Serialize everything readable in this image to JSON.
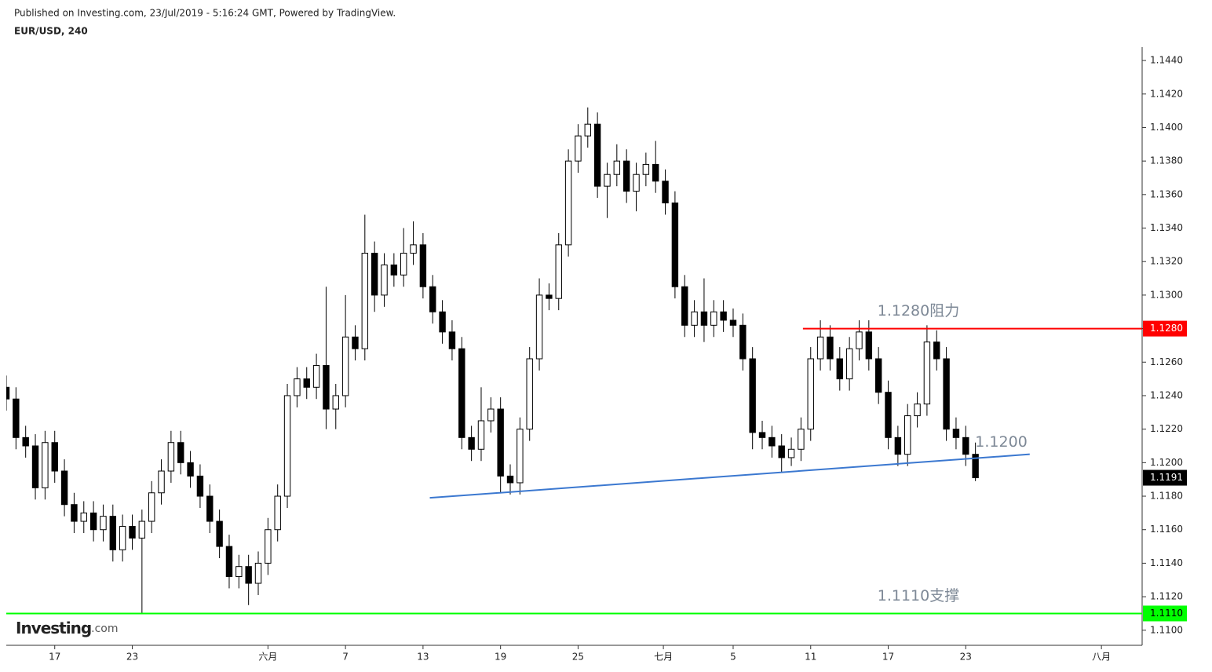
{
  "chart_data": {
    "type": "candlestick",
    "published": "Published on Investing.com, 23/Jul/2019 - 5:16:24 GMT, Powered by TradingView.",
    "title": "EUR/USD, 240",
    "logo": {
      "name": "Investing",
      "suffix": ".com"
    },
    "up_color": "#ffffff",
    "down_color": "#000000",
    "edge_color": "#000000",
    "xlim": [
      -2.5,
      56.1
    ],
    "xticks": [
      {
        "value": 0,
        "label": "17"
      },
      {
        "value": 4,
        "label": "23"
      },
      {
        "value": 11,
        "label": "六月"
      },
      {
        "value": 15,
        "label": "7"
      },
      {
        "value": 19,
        "label": "13"
      },
      {
        "value": 23,
        "label": "19"
      },
      {
        "value": 27,
        "label": "25"
      },
      {
        "value": 31.4,
        "label": "七月"
      },
      {
        "value": 35,
        "label": "5"
      },
      {
        "value": 39,
        "label": "11"
      },
      {
        "value": 43,
        "label": "17"
      },
      {
        "value": 47,
        "label": "23"
      },
      {
        "value": 54,
        "label": "八月"
      }
    ],
    "ylim": [
      1.1091,
      1.1448
    ],
    "yticks": [
      {
        "value": 1.11,
        "label": "1.1100"
      },
      {
        "value": 1.112,
        "label": "1.1120"
      },
      {
        "value": 1.114,
        "label": "1.1140"
      },
      {
        "value": 1.116,
        "label": "1.1160"
      },
      {
        "value": 1.118,
        "label": "1.1180"
      },
      {
        "value": 1.12,
        "label": "1.1200"
      },
      {
        "value": 1.122,
        "label": "1.1220"
      },
      {
        "value": 1.124,
        "label": "1.1240"
      },
      {
        "value": 1.126,
        "label": "1.1260"
      },
      {
        "value": 1.128,
        "label": "1.1280"
      },
      {
        "value": 1.13,
        "label": "1.1300"
      },
      {
        "value": 1.132,
        "label": "1.1320"
      },
      {
        "value": 1.134,
        "label": "1.1340"
      },
      {
        "value": 1.136,
        "label": "1.1360"
      },
      {
        "value": 1.138,
        "label": "1.1380"
      },
      {
        "value": 1.14,
        "label": "1.1400"
      },
      {
        "value": 1.142,
        "label": "1.1420"
      },
      {
        "value": 1.144,
        "label": "1.1440"
      }
    ],
    "x": [
      -2.5,
      -2,
      -1.5,
      -1,
      -0.5,
      0,
      0.5,
      1,
      1.5,
      2,
      2.5,
      3,
      3.5,
      4,
      4.5,
      5,
      5.5,
      6,
      6.5,
      7,
      7.5,
      8,
      8.5,
      9,
      9.5,
      10,
      10.5,
      11,
      11.5,
      12,
      12.5,
      13,
      13.5,
      14,
      14.5,
      15,
      15.5,
      16,
      16.5,
      17,
      17.5,
      18,
      18.5,
      19,
      19.5,
      20,
      20.5,
      21,
      21.5,
      22,
      22.5,
      23,
      23.5,
      24,
      24.5,
      25,
      25.5,
      26,
      26.5,
      27,
      27.5,
      28,
      28.5,
      29,
      29.5,
      30,
      30.5,
      31,
      31.5,
      32,
      32.5,
      33,
      33.5,
      34,
      34.5,
      35,
      35.5,
      36,
      36.5,
      37,
      37.5,
      38,
      38.5,
      39,
      39.5,
      40,
      40.5,
      41,
      41.5,
      42,
      42.5,
      43,
      43.5,
      44,
      44.5,
      45,
      45.5,
      46,
      46.5,
      47,
      47.5
    ],
    "open": [
      1.1245,
      1.1238,
      1.1215,
      1.121,
      1.1185,
      1.1212,
      1.1195,
      1.1175,
      1.1165,
      1.117,
      1.116,
      1.1168,
      1.1148,
      1.1162,
      1.1155,
      1.1165,
      1.1182,
      1.1195,
      1.1212,
      1.12,
      1.1192,
      1.118,
      1.1165,
      1.115,
      1.1132,
      1.1138,
      1.1128,
      1.114,
      1.116,
      1.118,
      1.124,
      1.125,
      1.1245,
      1.1258,
      1.1232,
      1.124,
      1.1275,
      1.1268,
      1.1325,
      1.13,
      1.1318,
      1.1312,
      1.1325,
      1.133,
      1.1305,
      1.129,
      1.1278,
      1.1268,
      1.1215,
      1.1208,
      1.1225,
      1.1232,
      1.1192,
      1.1188,
      1.122,
      1.1262,
      1.13,
      1.1298,
      1.133,
      1.138,
      1.1395,
      1.1402,
      1.1365,
      1.1372,
      1.138,
      1.1362,
      1.1372,
      1.1378,
      1.1368,
      1.1355,
      1.1305,
      1.1282,
      1.129,
      1.1282,
      1.129,
      1.1285,
      1.1282,
      1.1262,
      1.1218,
      1.1215,
      1.121,
      1.1203,
      1.1208,
      1.122,
      1.1262,
      1.1275,
      1.1262,
      1.125,
      1.1268,
      1.1278,
      1.1262,
      1.1242,
      1.1215,
      1.1205,
      1.1228,
      1.1235,
      1.1272,
      1.1262,
      1.122,
      1.1215,
      1.1205
    ],
    "high": [
      1.1252,
      1.1245,
      1.1222,
      1.1217,
      1.1219,
      1.1219,
      1.1202,
      1.1182,
      1.1177,
      1.1177,
      1.1175,
      1.1175,
      1.1169,
      1.1169,
      1.1172,
      1.1189,
      1.1202,
      1.1219,
      1.1219,
      1.1207,
      1.1199,
      1.1187,
      1.1172,
      1.1157,
      1.1145,
      1.1145,
      1.1147,
      1.1167,
      1.1187,
      1.1247,
      1.1257,
      1.1257,
      1.1265,
      1.1305,
      1.1247,
      1.13,
      1.1282,
      1.1348,
      1.1332,
      1.1325,
      1.1325,
      1.134,
      1.1344,
      1.1337,
      1.1312,
      1.1297,
      1.1285,
      1.1275,
      1.1222,
      1.1245,
      1.1239,
      1.1239,
      1.1199,
      1.1227,
      1.1269,
      1.131,
      1.1307,
      1.1337,
      1.1387,
      1.1402,
      1.1412,
      1.1409,
      1.1379,
      1.139,
      1.1387,
      1.1379,
      1.1385,
      1.1392,
      1.1375,
      1.1362,
      1.1312,
      1.1297,
      1.131,
      1.1297,
      1.1297,
      1.1292,
      1.1289,
      1.1269,
      1.1225,
      1.1222,
      1.1217,
      1.1215,
      1.1227,
      1.1269,
      1.1285,
      1.1282,
      1.1269,
      1.1275,
      1.1285,
      1.1285,
      1.1269,
      1.1249,
      1.1222,
      1.1235,
      1.1242,
      1.1282,
      1.1279,
      1.1269,
      1.1227,
      1.1222,
      1.1212
    ],
    "low": [
      1.1231,
      1.1208,
      1.1203,
      1.1178,
      1.1178,
      1.1188,
      1.1168,
      1.1158,
      1.1158,
      1.1153,
      1.1153,
      1.1141,
      1.1141,
      1.1148,
      1.111,
      1.1158,
      1.1175,
      1.1188,
      1.1193,
      1.1185,
      1.1173,
      1.1158,
      1.1143,
      1.1125,
      1.1125,
      1.1115,
      1.1121,
      1.1133,
      1.1153,
      1.1173,
      1.1233,
      1.1238,
      1.1238,
      1.122,
      1.122,
      1.1233,
      1.1261,
      1.1261,
      1.129,
      1.1293,
      1.1305,
      1.1305,
      1.1318,
      1.1298,
      1.1283,
      1.1271,
      1.1261,
      1.1208,
      1.1201,
      1.1201,
      1.1218,
      1.1182,
      1.1181,
      1.1181,
      1.1213,
      1.1255,
      1.1291,
      1.1291,
      1.1323,
      1.1373,
      1.1388,
      1.1358,
      1.1346,
      1.1365,
      1.1355,
      1.135,
      1.1365,
      1.1361,
      1.1348,
      1.1298,
      1.1275,
      1.1275,
      1.1272,
      1.1275,
      1.1278,
      1.1275,
      1.1255,
      1.1208,
      1.1208,
      1.1203,
      1.1194,
      1.1198,
      1.1201,
      1.1213,
      1.1255,
      1.1255,
      1.1243,
      1.1243,
      1.1261,
      1.1255,
      1.1235,
      1.1208,
      1.1198,
      1.1198,
      1.1221,
      1.1228,
      1.1255,
      1.1213,
      1.1208,
      1.1198,
      1.1189
    ],
    "close": [
      1.1238,
      1.1215,
      1.121,
      1.1185,
      1.1212,
      1.1195,
      1.1175,
      1.1165,
      1.117,
      1.116,
      1.1168,
      1.1148,
      1.1162,
      1.1155,
      1.1165,
      1.1182,
      1.1195,
      1.1212,
      1.12,
      1.1192,
      1.118,
      1.1165,
      1.115,
      1.1132,
      1.1138,
      1.1128,
      1.114,
      1.116,
      1.118,
      1.124,
      1.125,
      1.1245,
      1.1258,
      1.1232,
      1.124,
      1.1275,
      1.1268,
      1.1325,
      1.13,
      1.1318,
      1.1312,
      1.1325,
      1.133,
      1.1305,
      1.129,
      1.1278,
      1.1268,
      1.1215,
      1.1208,
      1.1225,
      1.1232,
      1.1192,
      1.1188,
      1.122,
      1.1262,
      1.13,
      1.1298,
      1.133,
      1.138,
      1.1395,
      1.1402,
      1.1365,
      1.1372,
      1.138,
      1.1362,
      1.1372,
      1.1378,
      1.1368,
      1.1355,
      1.1305,
      1.1282,
      1.129,
      1.1282,
      1.129,
      1.1285,
      1.1282,
      1.1262,
      1.1218,
      1.1215,
      1.121,
      1.1203,
      1.1208,
      1.122,
      1.1262,
      1.1275,
      1.1262,
      1.125,
      1.1268,
      1.1278,
      1.1262,
      1.1242,
      1.1215,
      1.1205,
      1.1228,
      1.1235,
      1.1272,
      1.1262,
      1.122,
      1.1215,
      1.1205,
      1.1191
    ],
    "last_price": {
      "value": 1.1191,
      "label": "1.1191",
      "color": "#000000",
      "text_color": "#ffffff"
    },
    "levels": [
      {
        "value": 1.128,
        "label": "1.1280",
        "annotation": "1.1280阻力",
        "x_start": 38.6,
        "color": "#ff0000",
        "text_color": "#ffffff"
      },
      {
        "value": 1.111,
        "label": "1.1110",
        "annotation": "1.1110支撑",
        "x_start": -2.5,
        "color": "#00ff00",
        "text_color": "#000000"
      }
    ],
    "trendline": {
      "x": [
        19.35,
        50.3
      ],
      "y": [
        1.1179,
        1.1205
      ],
      "color": "#3b78d0",
      "annotation": "1.1200"
    }
  }
}
